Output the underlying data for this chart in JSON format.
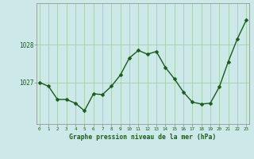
{
  "x": [
    0,
    1,
    2,
    3,
    4,
    5,
    6,
    7,
    8,
    9,
    10,
    11,
    12,
    13,
    14,
    15,
    16,
    17,
    18,
    19,
    20,
    21,
    22,
    23
  ],
  "y": [
    1027.0,
    1026.9,
    1026.55,
    1026.55,
    1026.45,
    1026.25,
    1026.7,
    1026.68,
    1026.9,
    1027.2,
    1027.65,
    1027.85,
    1027.75,
    1027.82,
    1027.4,
    1027.1,
    1026.75,
    1026.48,
    1026.43,
    1026.45,
    1026.88,
    1027.55,
    1028.15,
    1028.65
  ],
  "line_color": "#1a5c1a",
  "marker_color": "#1a5c1a",
  "bg_color": "#cce8e8",
  "grid_color": "#99cc99",
  "xlabel": "Graphe pression niveau de la mer (hPa)",
  "xlabel_color": "#1a5c1a",
  "tick_color": "#1a5c1a",
  "ylim": [
    1025.9,
    1029.1
  ],
  "yticks": [
    1027,
    1028
  ],
  "xlim": [
    -0.3,
    23.3
  ],
  "marker_size": 2.5,
  "line_width": 1.0
}
